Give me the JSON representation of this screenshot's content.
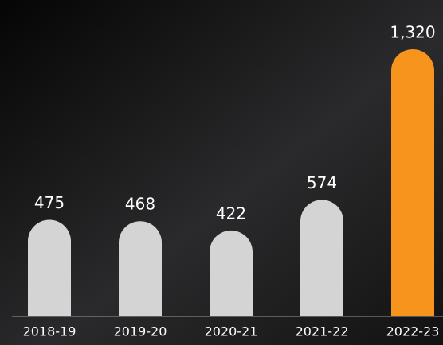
{
  "chart_data": {
    "type": "bar",
    "categories": [
      "2018-19",
      "2019-20",
      "2020-21",
      "2021-22",
      "2022-23"
    ],
    "values": [
      475,
      468,
      422,
      574,
      1320
    ],
    "value_labels": [
      "475",
      "468",
      "422",
      "574",
      "1,320"
    ],
    "colors": [
      "#d4d4d4",
      "#d4d4d4",
      "#d4d4d4",
      "#d4d4d4",
      "#f7941d"
    ]
  }
}
